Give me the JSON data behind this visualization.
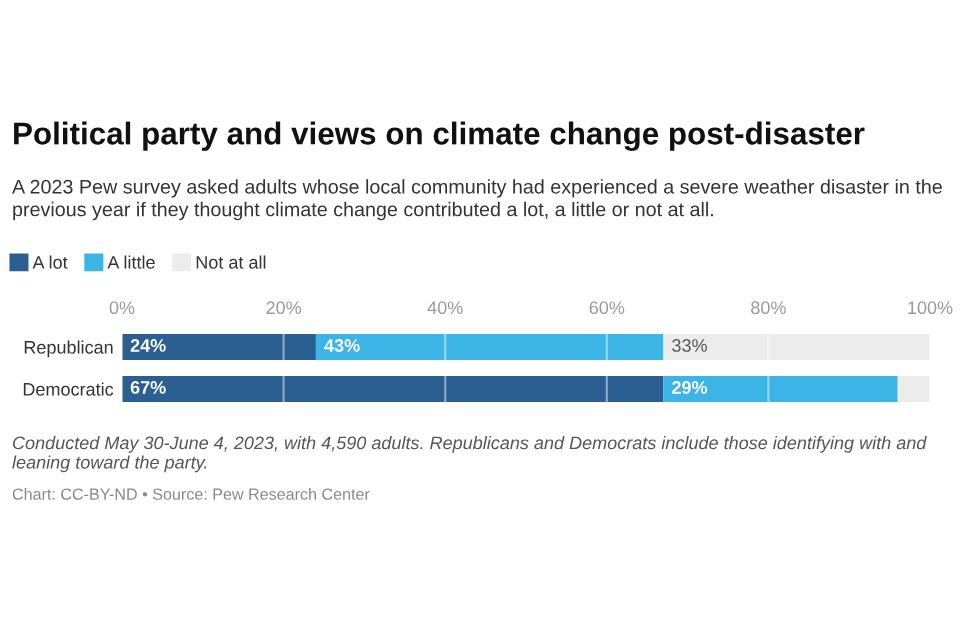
{
  "chart_data": {
    "type": "bar",
    "orientation": "horizontal",
    "stacked": true,
    "title": "Political party and views on climate change post-disaster",
    "subtitle": "A 2023 Pew survey asked adults whose local community had experienced a severe weather disaster in the previous year if they thought climate change contributed a lot, a little or not at all.",
    "categories": [
      "Republican",
      "Democratic"
    ],
    "series": [
      {
        "name": "A lot",
        "color": "#2b5f91",
        "values": [
          24,
          67
        ],
        "value_labels": [
          "24%",
          "67%"
        ]
      },
      {
        "name": "A little",
        "color": "#3cb4e5",
        "values": [
          43,
          29
        ],
        "value_labels": [
          "43%",
          "29%"
        ]
      },
      {
        "name": "Not at all",
        "color": "#ececec",
        "values": [
          33,
          4
        ],
        "value_labels": [
          "33%",
          null
        ]
      }
    ],
    "xlim": [
      0,
      100
    ],
    "xticks": [
      {
        "value": 0,
        "label": "0%"
      },
      {
        "value": 20,
        "label": "20%"
      },
      {
        "value": 40,
        "label": "40%"
      },
      {
        "value": 60,
        "label": "60%"
      },
      {
        "value": 80,
        "label": "80%"
      },
      {
        "value": 100,
        "label": "100%"
      }
    ],
    "grid": "x",
    "legend": "top left",
    "annotations": [
      "Conducted May 30-June 4, 2023, with 4,590 adults. Republicans and Democrats include those identifying with and leaning toward the party.",
      "Chart: CC-BY-ND • Source: Pew Research Center"
    ]
  }
}
